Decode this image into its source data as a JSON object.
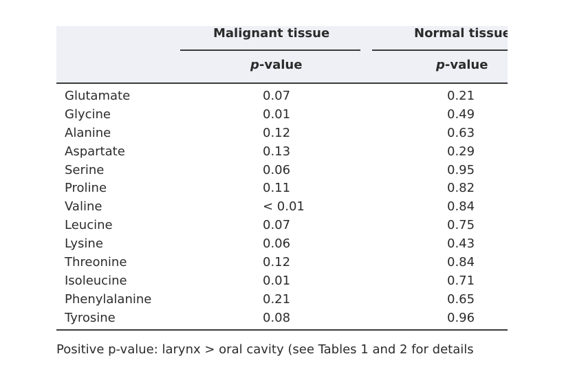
{
  "table": {
    "headers": {
      "malignant": "Malignant tissue",
      "normal": "Normal tissue"
    },
    "subheaders": {
      "p_italic": "p",
      "rest": "-value"
    },
    "rows": [
      {
        "name": "Glutamate",
        "malignant": "0.07",
        "normal": "0.21"
      },
      {
        "name": "Glycine",
        "malignant": "0.01",
        "normal": "0.49"
      },
      {
        "name": "Alanine",
        "malignant": "0.12",
        "normal": "0.63"
      },
      {
        "name": "Aspartate",
        "malignant": "0.13",
        "normal": "0.29"
      },
      {
        "name": "Serine",
        "malignant": "0.06",
        "normal": "0.95"
      },
      {
        "name": "Proline",
        "malignant": "0.11",
        "normal": "0.82"
      },
      {
        "name": "Valine",
        "malignant": "< 0.01",
        "normal": "0.84"
      },
      {
        "name": "Leucine",
        "malignant": "0.07",
        "normal": "0.75"
      },
      {
        "name": "Lysine",
        "malignant": "0.06",
        "normal": "0.43"
      },
      {
        "name": "Threonine",
        "malignant": "0.12",
        "normal": "0.84"
      },
      {
        "name": "Isoleucine",
        "malignant": "0.01",
        "normal": "0.71"
      },
      {
        "name": "Phenylalanine",
        "malignant": "0.21",
        "normal": "0.65"
      },
      {
        "name": "Tyrosine",
        "malignant": "0.08",
        "normal": "0.96"
      }
    ]
  },
  "footnote": "Positive p-value: larynx > oral cavity (see Tables 1 and 2 for details"
}
